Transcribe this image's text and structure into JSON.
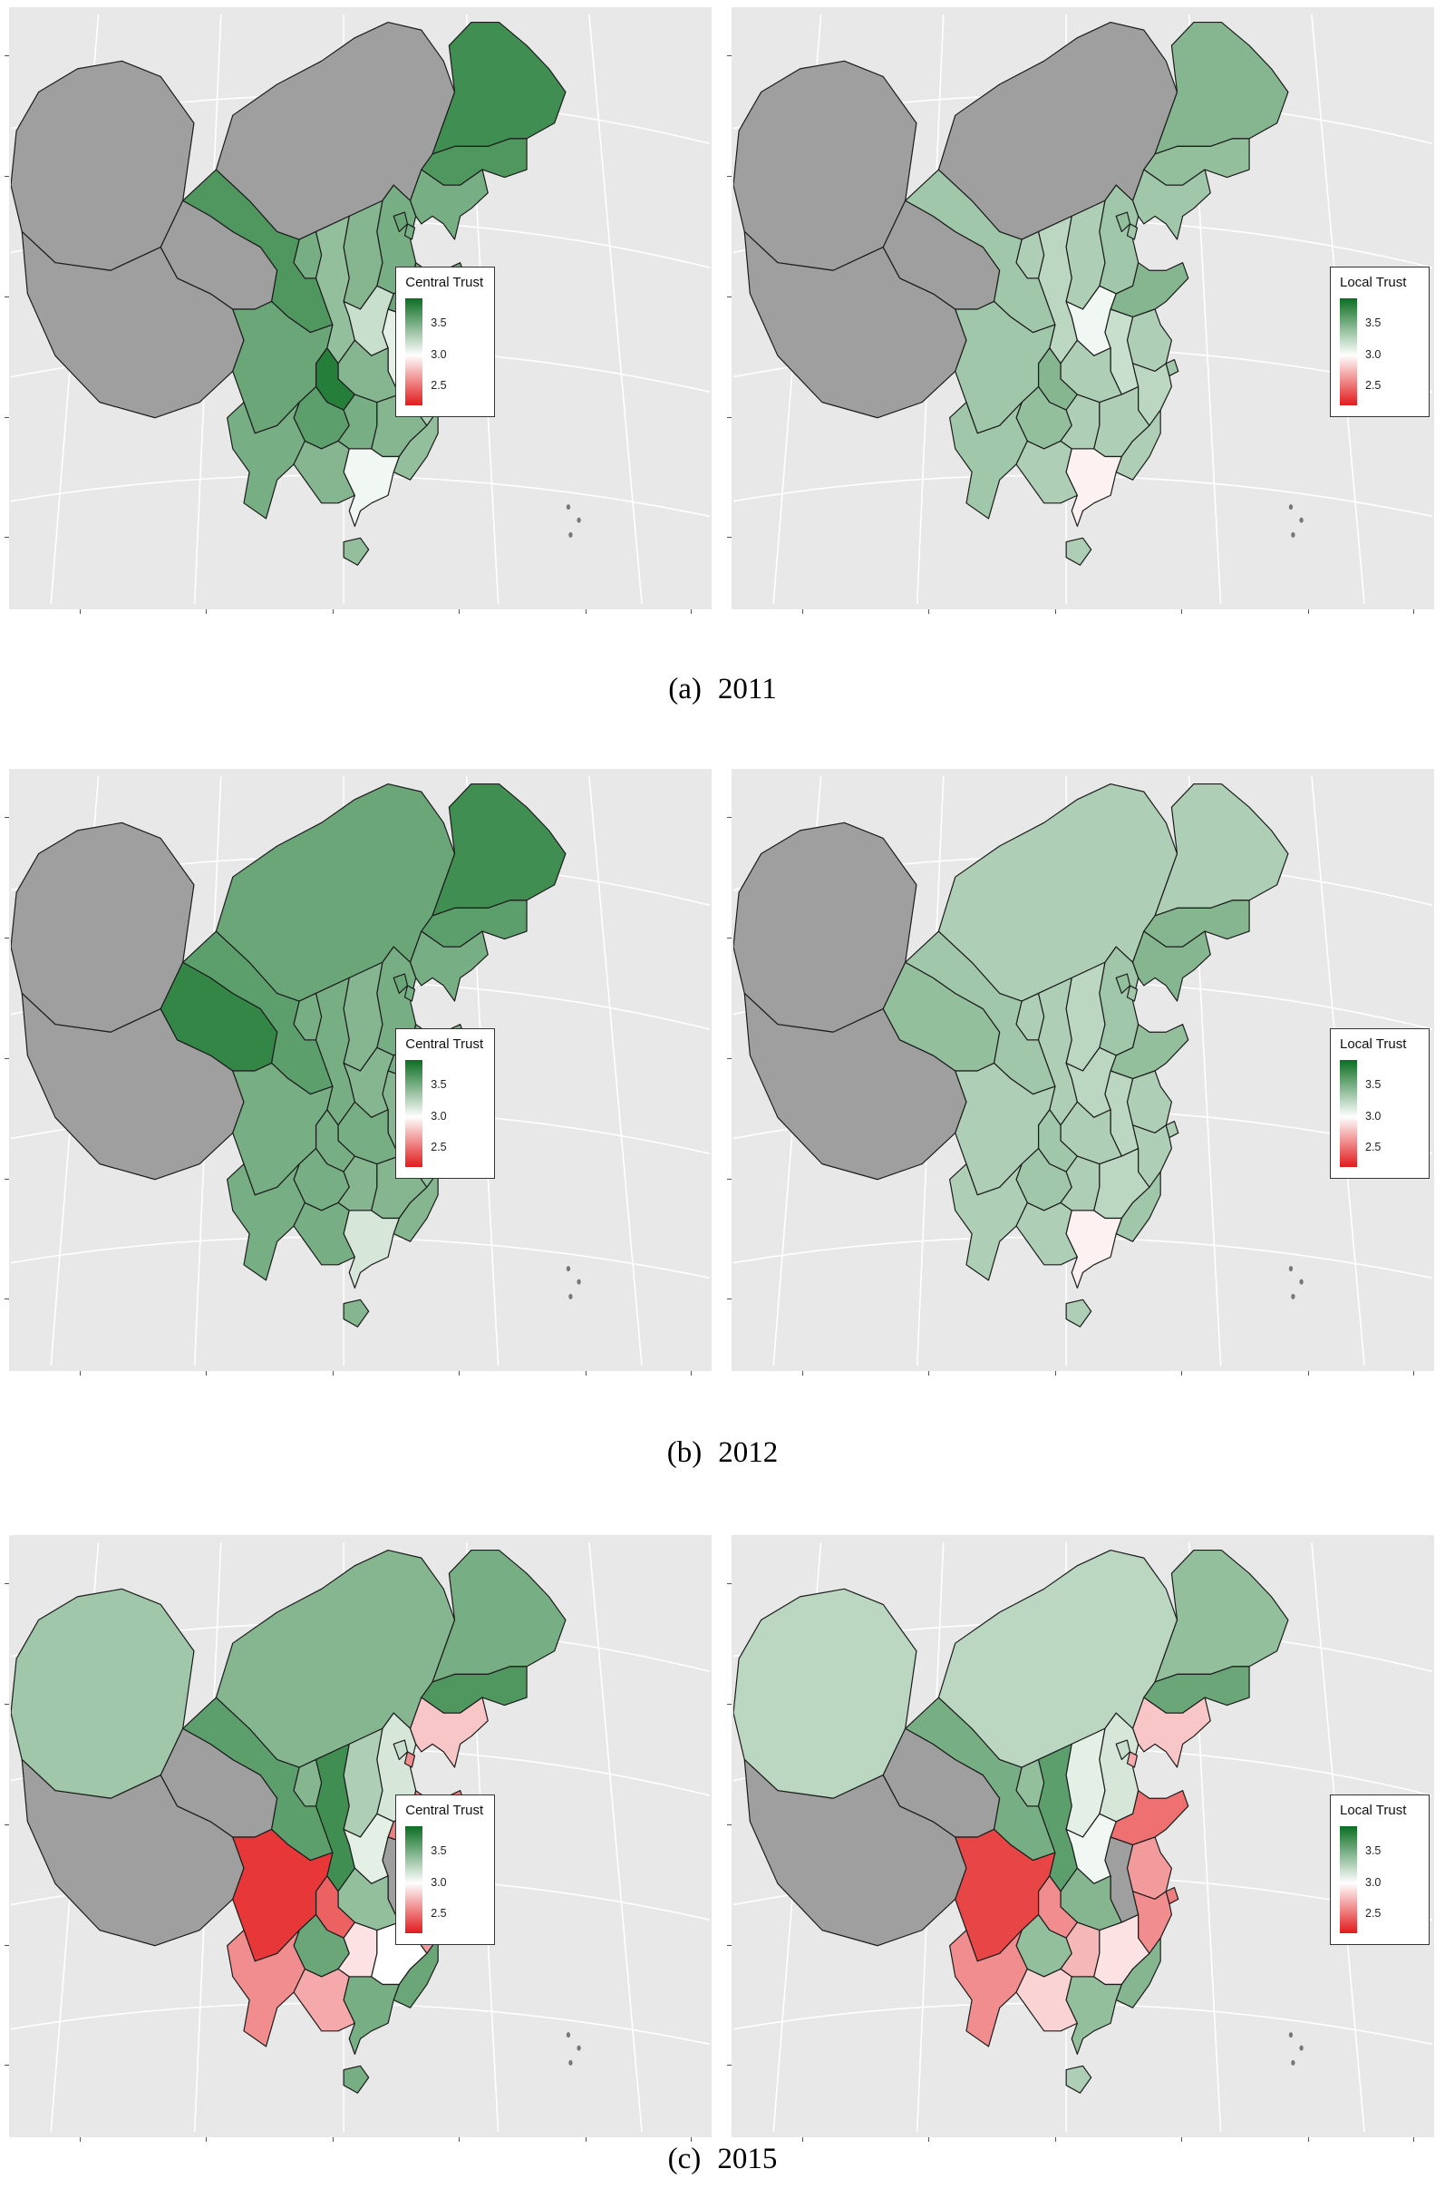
{
  "panel": {
    "background": "#E8E8E8",
    "na_color": "#9F9F9F",
    "graticule_color": "#FFFFFF",
    "border_color": "#1C1C1C"
  },
  "legend": {
    "tick_labels": [
      "3.5",
      "3.0",
      "2.5"
    ],
    "tick_values": [
      3.5,
      3.0,
      2.5
    ]
  },
  "scale": {
    "min": 2.2,
    "mid": 3.0,
    "max": 3.9,
    "green_max": "#0B6E22",
    "white_mid": "#FFFFFF",
    "red_min": "#E31A1C"
  },
  "captions": [
    {
      "index": "(a)",
      "year": "2011"
    },
    {
      "index": "(b)",
      "year": "2012"
    },
    {
      "index": "(c)",
      "year": "2015"
    }
  ],
  "chart_data": [
    {
      "type": "choropleth",
      "title": "Central Trust 2011",
      "legend_title": "Central Trust",
      "year": "2011",
      "scale_ticks": [
        3.5,
        3.0,
        2.5
      ],
      "values": {
        "Xinjiang": null,
        "Tibet": null,
        "Qinghai": null,
        "Inner Mongolia": null,
        "Gansu": 3.65,
        "Ningxia": 3.5,
        "Heilongjiang": 3.7,
        "Jilin": 3.65,
        "Liaoning": 3.5,
        "Hebei": 3.5,
        "Beijing": 3.55,
        "Tianjin": 3.5,
        "Shanxi": 3.45,
        "Shaanxi": 3.4,
        "Shandong": 3.55,
        "Henan": 3.2,
        "Jiangsu": 3.35,
        "Anhui": 3.1,
        "Shanghai": 3.4,
        "Hubei": 3.45,
        "Chongqing": 3.8,
        "Sichuan": 3.55,
        "Guizhou": 3.6,
        "Yunnan": 3.5,
        "Hunan": 3.5,
        "Jiangxi": 3.45,
        "Zhejiang": 3.3,
        "Fujian": 3.4,
        "Guangdong": 3.05,
        "Guangxi": 3.45,
        "Hainan": 3.4
      }
    },
    {
      "type": "choropleth",
      "title": "Local Trust 2011",
      "legend_title": "Local Trust",
      "year": "2011",
      "scale_ticks": [
        3.5,
        3.0,
        2.5
      ],
      "values": {
        "Xinjiang": null,
        "Tibet": null,
        "Qinghai": null,
        "Inner Mongolia": null,
        "Gansu": 3.35,
        "Ningxia": 3.3,
        "Heilongjiang": 3.45,
        "Jilin": 3.4,
        "Liaoning": 3.35,
        "Hebei": 3.35,
        "Beijing": 3.4,
        "Tianjin": 3.35,
        "Shanxi": 3.3,
        "Shaanxi": 3.25,
        "Shandong": 3.45,
        "Henan": 3.05,
        "Jiangsu": 3.3,
        "Anhui": 3.2,
        "Shanghai": 3.35,
        "Hubei": 3.3,
        "Chongqing": 3.45,
        "Sichuan": 3.35,
        "Guizhou": 3.4,
        "Yunnan": 3.35,
        "Hunan": 3.3,
        "Jiangxi": 3.3,
        "Zhejiang": 3.25,
        "Fujian": 3.3,
        "Guangdong": 2.95,
        "Guangxi": 3.3,
        "Hainan": 3.3
      }
    },
    {
      "type": "choropleth",
      "title": "Central Trust 2012",
      "legend_title": "Central Trust",
      "year": "2012",
      "scale_ticks": [
        3.5,
        3.0,
        2.5
      ],
      "values": {
        "Xinjiang": null,
        "Tibet": null,
        "Qinghai": 3.75,
        "Inner Mongolia": 3.55,
        "Gansu": 3.6,
        "Ningxia": 3.5,
        "Heilongjiang": 3.7,
        "Jilin": 3.6,
        "Liaoning": 3.5,
        "Hebei": 3.5,
        "Beijing": 3.55,
        "Tianjin": 3.5,
        "Shanxi": 3.45,
        "Shaanxi": 3.5,
        "Shandong": 3.5,
        "Henan": 3.45,
        "Jiangsu": 3.4,
        "Anhui": 3.45,
        "Shanghai": 3.45,
        "Hubei": 3.5,
        "Chongqing": 3.5,
        "Sichuan": 3.5,
        "Guizhou": 3.5,
        "Yunnan": 3.5,
        "Hunan": 3.45,
        "Jiangxi": 3.45,
        "Zhejiang": 3.4,
        "Fujian": 3.45,
        "Guangdong": 3.15,
        "Guangxi": 3.5,
        "Hainan": 3.45
      }
    },
    {
      "type": "choropleth",
      "title": "Local Trust 2012",
      "legend_title": "Local Trust",
      "year": "2012",
      "scale_ticks": [
        3.5,
        3.0,
        2.5
      ],
      "values": {
        "Xinjiang": null,
        "Tibet": null,
        "Qinghai": 3.4,
        "Inner Mongolia": 3.3,
        "Gansu": 3.35,
        "Ningxia": 3.3,
        "Heilongjiang": 3.3,
        "Jilin": 3.45,
        "Liaoning": 3.45,
        "Hebei": 3.35,
        "Beijing": 3.4,
        "Tianjin": 3.35,
        "Shanxi": 3.25,
        "Shaanxi": 3.3,
        "Shandong": 3.4,
        "Henan": 3.25,
        "Jiangsu": 3.3,
        "Anhui": 3.25,
        "Shanghai": 3.3,
        "Hubei": 3.3,
        "Chongqing": 3.35,
        "Sichuan": 3.3,
        "Guizhou": 3.35,
        "Yunnan": 3.3,
        "Hunan": 3.3,
        "Jiangxi": 3.25,
        "Zhejiang": 3.3,
        "Fujian": 3.35,
        "Guangdong": 2.95,
        "Guangxi": 3.3,
        "Hainan": 3.3
      }
    },
    {
      "type": "choropleth",
      "title": "Central Trust 2015",
      "legend_title": "Central Trust",
      "year": "2015",
      "scale_ticks": [
        3.5,
        3.0,
        2.5
      ],
      "values": {
        "Xinjiang": 3.35,
        "Tibet": null,
        "Qinghai": null,
        "Inner Mongolia": 3.45,
        "Gansu": 3.6,
        "Ningxia": 3.45,
        "Heilongjiang": 3.5,
        "Jilin": 3.65,
        "Liaoning": 2.8,
        "Hebei": 3.15,
        "Beijing": 3.2,
        "Tianjin": 2.6,
        "Shanxi": 3.3,
        "Shaanxi": 3.7,
        "Shandong": 2.55,
        "Henan": 3.1,
        "Jiangsu": 2.6,
        "Anhui": null,
        "Shanghai": 2.5,
        "Hubei": 3.4,
        "Chongqing": 2.45,
        "Sichuan": 2.3,
        "Guizhou": 3.55,
        "Yunnan": 2.6,
        "Hunan": 2.9,
        "Jiangxi": 3.0,
        "Zhejiang": 2.65,
        "Fujian": 3.55,
        "Guangdong": 3.5,
        "Guangxi": 2.7,
        "Hainan": 3.5
      }
    },
    {
      "type": "choropleth",
      "title": "Local Trust 2015",
      "legend_title": "Local Trust",
      "year": "2015",
      "scale_ticks": [
        3.5,
        3.0,
        2.5
      ],
      "values": {
        "Xinjiang": 3.25,
        "Tibet": null,
        "Qinghai": null,
        "Inner Mongolia": 3.25,
        "Gansu": 3.5,
        "Ningxia": 3.4,
        "Heilongjiang": 3.4,
        "Jilin": 3.55,
        "Liaoning": 2.8,
        "Hebei": 3.15,
        "Beijing": 3.2,
        "Tianjin": 2.7,
        "Shanxi": 3.1,
        "Shaanxi": 3.6,
        "Shandong": 2.5,
        "Henan": 3.05,
        "Jiangsu": 2.65,
        "Anhui": null,
        "Shanghai": 2.55,
        "Hubei": 3.45,
        "Chongqing": 2.6,
        "Sichuan": 2.35,
        "Guizhou": 3.4,
        "Yunnan": 2.6,
        "Hunan": 2.75,
        "Jiangxi": 2.9,
        "Zhejiang": 2.6,
        "Fujian": 3.45,
        "Guangdong": 3.4,
        "Guangxi": 2.85,
        "Hainan": 3.3
      }
    }
  ]
}
